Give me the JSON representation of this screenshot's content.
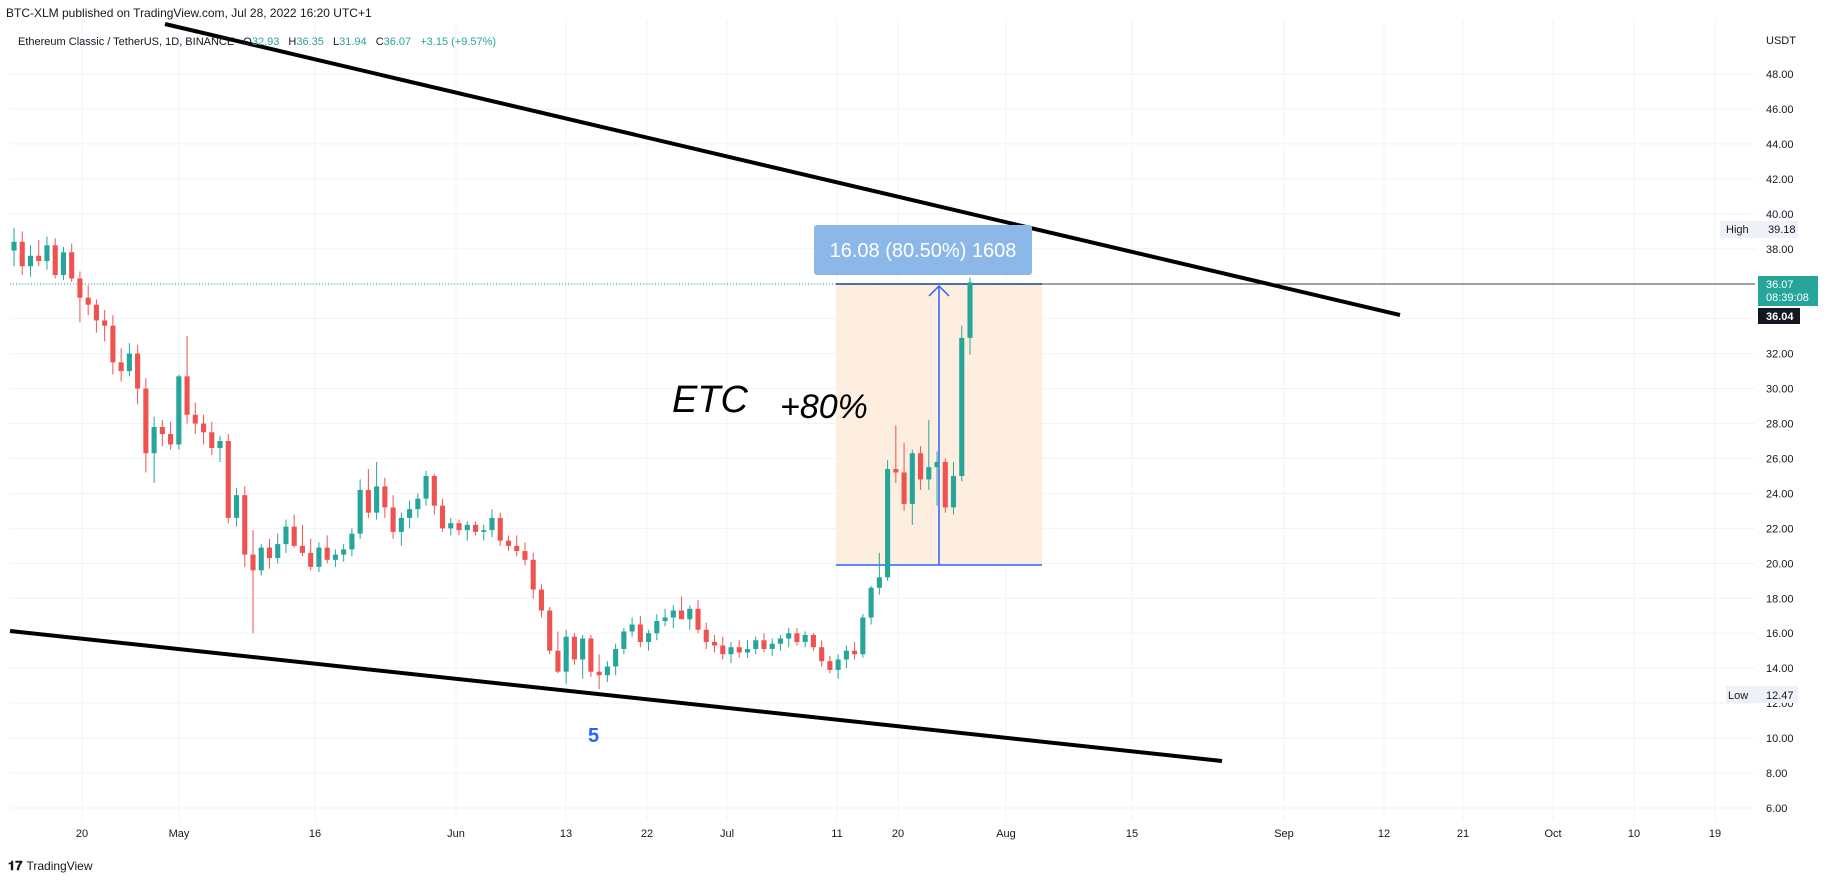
{
  "publisher_line": "BTC-XLM published on TradingView.com, Jul 28, 2022 16:20 UTC+1",
  "legend": {
    "symbol": "Ethereum Classic / TetherUS, 1D, BINANCE",
    "open_label": "O",
    "open": "32.93",
    "high_label": "H",
    "high": "36.35",
    "low_label": "L",
    "low": "31.94",
    "close_label": "C",
    "close": "36.07",
    "change": "+3.15 (+9.57%)"
  },
  "price_scale": {
    "currency": "USDT",
    "high_badge": {
      "label": "High",
      "value": "39.18"
    },
    "low_badge": {
      "label": "Low",
      "value": "12.47"
    },
    "last_price": "36.07",
    "countdown": "08:39:08",
    "crosshair_price": "36.04"
  },
  "annotations": {
    "measure_label": "16.08 (80.50%) 1608",
    "ticker_text": "ETC",
    "gain_text": "+80%",
    "wave_label": "5"
  },
  "footer": {
    "brand": "TradingView"
  },
  "colors": {
    "up": "#26a69a",
    "down": "#ef5350",
    "measure_fill": "#fdeee0",
    "measure_line": "#2962ff",
    "measure_label_bg": "#8bb8e8",
    "trendline": "#000000",
    "wave_label": "#2962ff",
    "last_price_bg": "#26a69a"
  },
  "chart_data": {
    "type": "candlestick",
    "ylim": [
      5,
      50
    ],
    "y_ticks": [
      6,
      8,
      10,
      12,
      14,
      16,
      18,
      20,
      22,
      24,
      26,
      28,
      30,
      32,
      34,
      36,
      38,
      40,
      42,
      44,
      46,
      48
    ],
    "x_ticks": [
      "20",
      "May",
      "16",
      "Jun",
      "13",
      "22",
      "Jul",
      "11",
      "20",
      "Aug",
      "15",
      "Sep",
      "12",
      "21",
      "Oct",
      "10",
      "19"
    ],
    "candles": [
      {
        "o": 37.9,
        "h": 39.2,
        "l": 37.0,
        "c": 38.4
      },
      {
        "o": 38.4,
        "h": 39.0,
        "l": 36.5,
        "c": 37.0
      },
      {
        "o": 37.0,
        "h": 38.2,
        "l": 36.4,
        "c": 37.6
      },
      {
        "o": 37.6,
        "h": 38.5,
        "l": 37.0,
        "c": 37.3
      },
      {
        "o": 37.3,
        "h": 38.7,
        "l": 36.8,
        "c": 38.2
      },
      {
        "o": 38.2,
        "h": 38.6,
        "l": 36.3,
        "c": 36.5
      },
      {
        "o": 36.5,
        "h": 38.1,
        "l": 36.2,
        "c": 37.8
      },
      {
        "o": 37.8,
        "h": 38.3,
        "l": 36.1,
        "c": 36.3
      },
      {
        "o": 36.3,
        "h": 36.7,
        "l": 33.8,
        "c": 35.2
      },
      {
        "o": 35.2,
        "h": 35.9,
        "l": 34.2,
        "c": 34.8
      },
      {
        "o": 34.8,
        "h": 35.1,
        "l": 33.2,
        "c": 33.9
      },
      {
        "o": 33.9,
        "h": 34.5,
        "l": 32.7,
        "c": 33.6
      },
      {
        "o": 33.6,
        "h": 34.2,
        "l": 30.8,
        "c": 31.5
      },
      {
        "o": 31.5,
        "h": 32.3,
        "l": 30.4,
        "c": 31.0
      },
      {
        "o": 31.0,
        "h": 32.6,
        "l": 30.7,
        "c": 32.0
      },
      {
        "o": 32.0,
        "h": 32.5,
        "l": 29.1,
        "c": 30.0
      },
      {
        "o": 30.0,
        "h": 30.6,
        "l": 25.2,
        "c": 26.3
      },
      {
        "o": 26.3,
        "h": 28.4,
        "l": 24.6,
        "c": 27.8
      },
      {
        "o": 27.8,
        "h": 28.2,
        "l": 26.7,
        "c": 27.4
      },
      {
        "o": 27.4,
        "h": 28.1,
        "l": 26.5,
        "c": 26.8
      },
      {
        "o": 26.8,
        "h": 30.8,
        "l": 26.5,
        "c": 30.7
      },
      {
        "o": 30.7,
        "h": 33.0,
        "l": 28.0,
        "c": 28.5
      },
      {
        "o": 28.5,
        "h": 29.2,
        "l": 27.4,
        "c": 28.0
      },
      {
        "o": 28.0,
        "h": 28.5,
        "l": 26.8,
        "c": 27.5
      },
      {
        "o": 27.5,
        "h": 28.1,
        "l": 26.2,
        "c": 26.6
      },
      {
        "o": 26.6,
        "h": 27.3,
        "l": 25.8,
        "c": 27.0
      },
      {
        "o": 27.0,
        "h": 27.4,
        "l": 22.3,
        "c": 22.6
      },
      {
        "o": 22.6,
        "h": 24.3,
        "l": 22.1,
        "c": 23.9
      },
      {
        "o": 23.9,
        "h": 24.4,
        "l": 19.8,
        "c": 20.5
      },
      {
        "o": 20.5,
        "h": 21.9,
        "l": 16.0,
        "c": 19.6
      },
      {
        "o": 19.6,
        "h": 21.1,
        "l": 19.3,
        "c": 20.9
      },
      {
        "o": 20.9,
        "h": 21.4,
        "l": 19.7,
        "c": 20.3
      },
      {
        "o": 20.3,
        "h": 21.7,
        "l": 20.0,
        "c": 21.1
      },
      {
        "o": 21.1,
        "h": 22.5,
        "l": 20.6,
        "c": 22.1
      },
      {
        "o": 22.1,
        "h": 22.8,
        "l": 20.9,
        "c": 21.0
      },
      {
        "o": 21.0,
        "h": 22.2,
        "l": 20.4,
        "c": 20.6
      },
      {
        "o": 20.6,
        "h": 21.4,
        "l": 19.6,
        "c": 19.8
      },
      {
        "o": 19.8,
        "h": 21.2,
        "l": 19.5,
        "c": 20.9
      },
      {
        "o": 20.9,
        "h": 21.6,
        "l": 20.0,
        "c": 20.2
      },
      {
        "o": 20.2,
        "h": 20.8,
        "l": 19.8,
        "c": 20.5
      },
      {
        "o": 20.5,
        "h": 21.1,
        "l": 20.1,
        "c": 20.8
      },
      {
        "o": 20.8,
        "h": 22.0,
        "l": 20.4,
        "c": 21.7
      },
      {
        "o": 21.7,
        "h": 24.8,
        "l": 21.4,
        "c": 24.2
      },
      {
        "o": 24.2,
        "h": 25.4,
        "l": 22.6,
        "c": 22.9
      },
      {
        "o": 22.9,
        "h": 25.8,
        "l": 22.5,
        "c": 24.4
      },
      {
        "o": 24.4,
        "h": 24.9,
        "l": 22.6,
        "c": 23.2
      },
      {
        "o": 23.2,
        "h": 23.9,
        "l": 21.4,
        "c": 21.8
      },
      {
        "o": 21.8,
        "h": 22.9,
        "l": 21.0,
        "c": 22.6
      },
      {
        "o": 22.6,
        "h": 23.6,
        "l": 22.0,
        "c": 23.1
      },
      {
        "o": 23.1,
        "h": 24.0,
        "l": 22.6,
        "c": 23.7
      },
      {
        "o": 23.7,
        "h": 25.3,
        "l": 23.3,
        "c": 25.0
      },
      {
        "o": 25.0,
        "h": 25.1,
        "l": 22.8,
        "c": 23.3
      },
      {
        "o": 23.3,
        "h": 23.7,
        "l": 21.8,
        "c": 22.0
      },
      {
        "o": 22.0,
        "h": 22.6,
        "l": 21.6,
        "c": 22.3
      },
      {
        "o": 22.3,
        "h": 22.5,
        "l": 21.6,
        "c": 21.9
      },
      {
        "o": 21.9,
        "h": 22.4,
        "l": 21.3,
        "c": 22.2
      },
      {
        "o": 22.2,
        "h": 22.4,
        "l": 21.6,
        "c": 21.8
      },
      {
        "o": 21.8,
        "h": 22.2,
        "l": 21.3,
        "c": 21.9
      },
      {
        "o": 21.9,
        "h": 23.1,
        "l": 21.5,
        "c": 22.6
      },
      {
        "o": 22.6,
        "h": 22.9,
        "l": 21.0,
        "c": 21.3
      },
      {
        "o": 21.3,
        "h": 21.6,
        "l": 20.7,
        "c": 21.0
      },
      {
        "o": 21.0,
        "h": 21.6,
        "l": 20.4,
        "c": 20.7
      },
      {
        "o": 20.7,
        "h": 21.2,
        "l": 19.9,
        "c": 20.2
      },
      {
        "o": 20.2,
        "h": 20.6,
        "l": 18.0,
        "c": 18.5
      },
      {
        "o": 18.5,
        "h": 18.8,
        "l": 16.9,
        "c": 17.3
      },
      {
        "o": 17.3,
        "h": 17.5,
        "l": 14.8,
        "c": 15.0
      },
      {
        "o": 15.0,
        "h": 16.1,
        "l": 13.7,
        "c": 13.8
      },
      {
        "o": 13.8,
        "h": 16.2,
        "l": 13.1,
        "c": 15.8
      },
      {
        "o": 15.8,
        "h": 16.0,
        "l": 14.2,
        "c": 14.5
      },
      {
        "o": 14.5,
        "h": 15.9,
        "l": 13.4,
        "c": 15.7
      },
      {
        "o": 15.7,
        "h": 15.9,
        "l": 13.5,
        "c": 13.8
      },
      {
        "o": 13.8,
        "h": 14.8,
        "l": 12.8,
        "c": 13.6
      },
      {
        "o": 13.6,
        "h": 14.4,
        "l": 13.2,
        "c": 14.1
      },
      {
        "o": 14.1,
        "h": 15.4,
        "l": 13.6,
        "c": 15.1
      },
      {
        "o": 15.1,
        "h": 16.3,
        "l": 14.8,
        "c": 16.1
      },
      {
        "o": 16.1,
        "h": 16.9,
        "l": 15.8,
        "c": 16.5
      },
      {
        "o": 16.5,
        "h": 17.0,
        "l": 15.2,
        "c": 15.5
      },
      {
        "o": 15.5,
        "h": 16.2,
        "l": 15.0,
        "c": 16.0
      },
      {
        "o": 16.0,
        "h": 17.1,
        "l": 15.6,
        "c": 16.7
      },
      {
        "o": 16.7,
        "h": 17.4,
        "l": 16.4,
        "c": 16.9
      },
      {
        "o": 16.9,
        "h": 17.6,
        "l": 16.3,
        "c": 17.3
      },
      {
        "o": 17.3,
        "h": 18.1,
        "l": 17.0,
        "c": 16.8
      },
      {
        "o": 16.8,
        "h": 17.6,
        "l": 16.2,
        "c": 17.4
      },
      {
        "o": 17.4,
        "h": 17.9,
        "l": 16.0,
        "c": 16.2
      },
      {
        "o": 16.2,
        "h": 16.6,
        "l": 15.1,
        "c": 15.5
      },
      {
        "o": 15.5,
        "h": 15.9,
        "l": 14.9,
        "c": 15.3
      },
      {
        "o": 15.3,
        "h": 15.8,
        "l": 14.5,
        "c": 14.8
      },
      {
        "o": 14.8,
        "h": 15.5,
        "l": 14.3,
        "c": 15.2
      },
      {
        "o": 15.2,
        "h": 15.6,
        "l": 14.6,
        "c": 14.9
      },
      {
        "o": 14.9,
        "h": 15.6,
        "l": 14.6,
        "c": 15.1
      },
      {
        "o": 15.1,
        "h": 15.8,
        "l": 14.8,
        "c": 15.6
      },
      {
        "o": 15.6,
        "h": 16.0,
        "l": 14.9,
        "c": 15.1
      },
      {
        "o": 15.1,
        "h": 15.7,
        "l": 14.7,
        "c": 15.4
      },
      {
        "o": 15.4,
        "h": 15.9,
        "l": 15.0,
        "c": 15.7
      },
      {
        "o": 15.7,
        "h": 16.3,
        "l": 15.2,
        "c": 16.0
      },
      {
        "o": 16.0,
        "h": 16.3,
        "l": 15.3,
        "c": 15.5
      },
      {
        "o": 15.5,
        "h": 16.1,
        "l": 15.2,
        "c": 15.9
      },
      {
        "o": 15.9,
        "h": 16.0,
        "l": 15.0,
        "c": 15.2
      },
      {
        "o": 15.2,
        "h": 15.6,
        "l": 14.1,
        "c": 14.4
      },
      {
        "o": 14.4,
        "h": 14.7,
        "l": 13.7,
        "c": 13.9
      },
      {
        "o": 13.9,
        "h": 14.8,
        "l": 13.4,
        "c": 14.5
      },
      {
        "o": 14.5,
        "h": 15.3,
        "l": 14.0,
        "c": 15.0
      },
      {
        "o": 15.0,
        "h": 15.5,
        "l": 14.5,
        "c": 14.8
      },
      {
        "o": 14.8,
        "h": 17.1,
        "l": 14.6,
        "c": 16.9
      },
      {
        "o": 16.9,
        "h": 18.7,
        "l": 16.5,
        "c": 18.6
      },
      {
        "o": 18.6,
        "h": 20.6,
        "l": 18.2,
        "c": 19.2
      },
      {
        "o": 19.2,
        "h": 25.9,
        "l": 19.0,
        "c": 25.4
      },
      {
        "o": 25.4,
        "h": 27.9,
        "l": 24.6,
        "c": 25.2
      },
      {
        "o": 25.2,
        "h": 26.9,
        "l": 23.0,
        "c": 23.4
      },
      {
        "o": 23.4,
        "h": 26.5,
        "l": 22.2,
        "c": 26.3
      },
      {
        "o": 26.3,
        "h": 26.7,
        "l": 24.2,
        "c": 24.8
      },
      {
        "o": 24.8,
        "h": 28.2,
        "l": 24.2,
        "c": 25.5
      },
      {
        "o": 25.5,
        "h": 26.4,
        "l": 23.3,
        "c": 25.8
      },
      {
        "o": 25.8,
        "h": 26.0,
        "l": 22.9,
        "c": 23.2
      },
      {
        "o": 23.2,
        "h": 25.8,
        "l": 22.8,
        "c": 25.0
      },
      {
        "o": 25.0,
        "h": 33.6,
        "l": 24.7,
        "c": 32.9
      },
      {
        "o": 32.9,
        "h": 36.35,
        "l": 31.94,
        "c": 36.07
      }
    ]
  }
}
